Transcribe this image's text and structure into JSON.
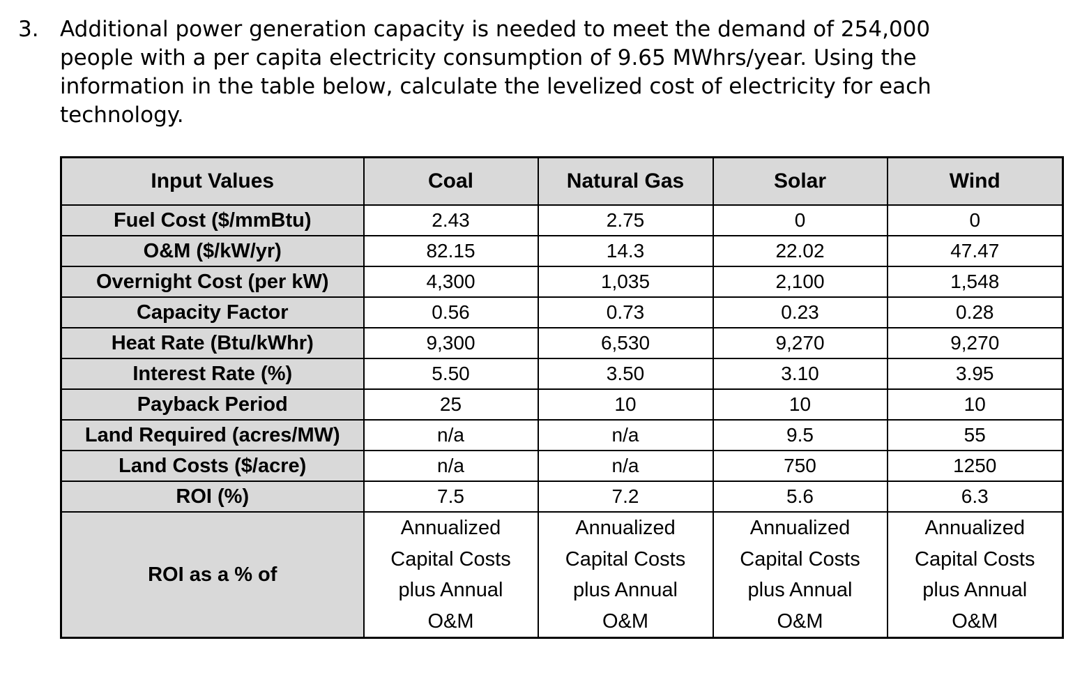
{
  "question": {
    "number": "3.",
    "text": "Additional power generation capacity is needed to meet the demand of 254,000 people with a per capita electricity consumption of 9.65 MWhrs/year. Using the information in the table below, calculate the levelized cost of electricity for each technology."
  },
  "table": {
    "headers": [
      "Input Values",
      "Coal",
      "Natural Gas",
      "Solar",
      "Wind"
    ],
    "rows": [
      {
        "label": "Fuel Cost ($/mmBtu)",
        "values": [
          "2.43",
          "2.75",
          "0",
          "0"
        ]
      },
      {
        "label": "O&M ($/kW/yr)",
        "values": [
          "82.15",
          "14.3",
          "22.02",
          "47.47"
        ]
      },
      {
        "label": "Overnight Cost (per kW)",
        "values": [
          "4,300",
          "1,035",
          "2,100",
          "1,548"
        ]
      },
      {
        "label": "Capacity Factor",
        "values": [
          "0.56",
          "0.73",
          "0.23",
          "0.28"
        ]
      },
      {
        "label": "Heat Rate (Btu/kWhr)",
        "values": [
          "9,300",
          "6,530",
          "9,270",
          "9,270"
        ]
      },
      {
        "label": "Interest Rate (%)",
        "values": [
          "5.50",
          "3.50",
          "3.10",
          "3.95"
        ]
      },
      {
        "label": "Payback Period",
        "values": [
          "25",
          "10",
          "10",
          "10"
        ]
      },
      {
        "label": "Land Required (acres/MW)",
        "values": [
          "n/a",
          "n/a",
          "9.5",
          "55"
        ]
      },
      {
        "label": "Land Costs ($/acre)",
        "values": [
          "n/a",
          "n/a",
          "750",
          "1250"
        ]
      },
      {
        "label": "ROI (%)",
        "values": [
          "7.5",
          "7.2",
          "5.6",
          "6.3"
        ]
      }
    ],
    "roi_basis": {
      "label": "ROI as a % of",
      "lines": [
        "Annualized",
        "Capital Costs",
        "plus Annual",
        "O&M"
      ]
    }
  }
}
